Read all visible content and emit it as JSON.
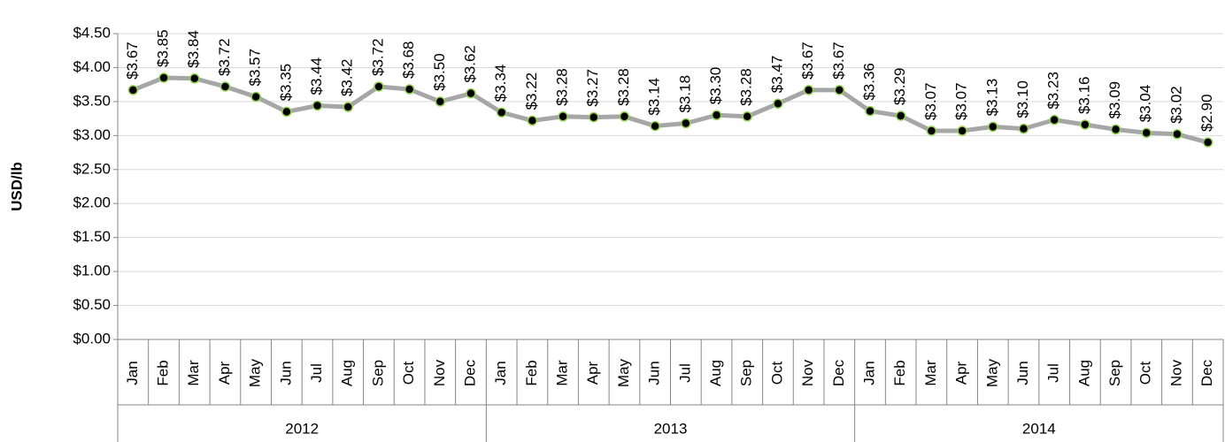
{
  "chart_data": {
    "type": "line",
    "y_label": "USD/lb",
    "categories": [
      "Jan",
      "Feb",
      "Mar",
      "Apr",
      "May",
      "Jun",
      "Jul",
      "Aug",
      "Sep",
      "Oct",
      "Nov",
      "Dec",
      "Jan",
      "Feb",
      "Mar",
      "Apr",
      "May",
      "Jun",
      "Jul",
      "Aug",
      "Sep",
      "Oct",
      "Nov",
      "Dec",
      "Jan",
      "Feb",
      "Mar",
      "Apr",
      "May",
      "Jun",
      "Jul",
      "Aug",
      "Sep",
      "Oct",
      "Nov",
      "Dec"
    ],
    "years": [
      "2012",
      "2013",
      "2014"
    ],
    "series": [
      {
        "color": "#a6a6a6",
        "marker_color": "#000000",
        "marker_edge": "#92d050",
        "values": [
          3.67,
          3.85,
          3.84,
          3.72,
          3.57,
          3.35,
          3.44,
          3.42,
          3.72,
          3.68,
          3.5,
          3.62,
          3.34,
          3.22,
          3.28,
          3.27,
          3.28,
          3.14,
          3.18,
          3.3,
          3.28,
          3.47,
          3.67,
          3.67,
          3.36,
          3.29,
          3.07,
          3.07,
          3.13,
          3.1,
          3.23,
          3.16,
          3.09,
          3.04,
          3.02,
          2.9
        ],
        "value_labels": [
          "$3.67",
          "$3.85",
          "$3.84",
          "$3.72",
          "$3.57",
          "$3.35",
          "$3.44",
          "$3.42",
          "$3.72",
          "$3.68",
          "$3.50",
          "$3.62",
          "$3.34",
          "$3.22",
          "$3.28",
          "$3.27",
          "$3.28",
          "$3.14",
          "$3.18",
          "$3.30",
          "$3.28",
          "$3.47",
          "$3.67",
          "$3.67",
          "$3.36",
          "$3.29",
          "$3.07",
          "$3.07",
          "$3.13",
          "$3.10",
          "$3.23",
          "$3.16",
          "$3.09",
          "$3.04",
          "$3.02",
          "$2.90"
        ]
      }
    ],
    "ylim": [
      0,
      4.5
    ],
    "yticks": [
      {
        "value": 0,
        "label": "$0.00"
      },
      {
        "value": 0.5,
        "label": "$0.50"
      },
      {
        "value": 1,
        "label": "$1.00"
      },
      {
        "value": 1.5,
        "label": "$1.50"
      },
      {
        "value": 2,
        "label": "$2.00"
      },
      {
        "value": 2.5,
        "label": "$2.50"
      },
      {
        "value": 3,
        "label": "$3.00"
      },
      {
        "value": 3.5,
        "label": "$3.50"
      },
      {
        "value": 4,
        "label": "$4.00"
      },
      {
        "value": 4.5,
        "label": "$4.50"
      }
    ],
    "grid": true
  }
}
